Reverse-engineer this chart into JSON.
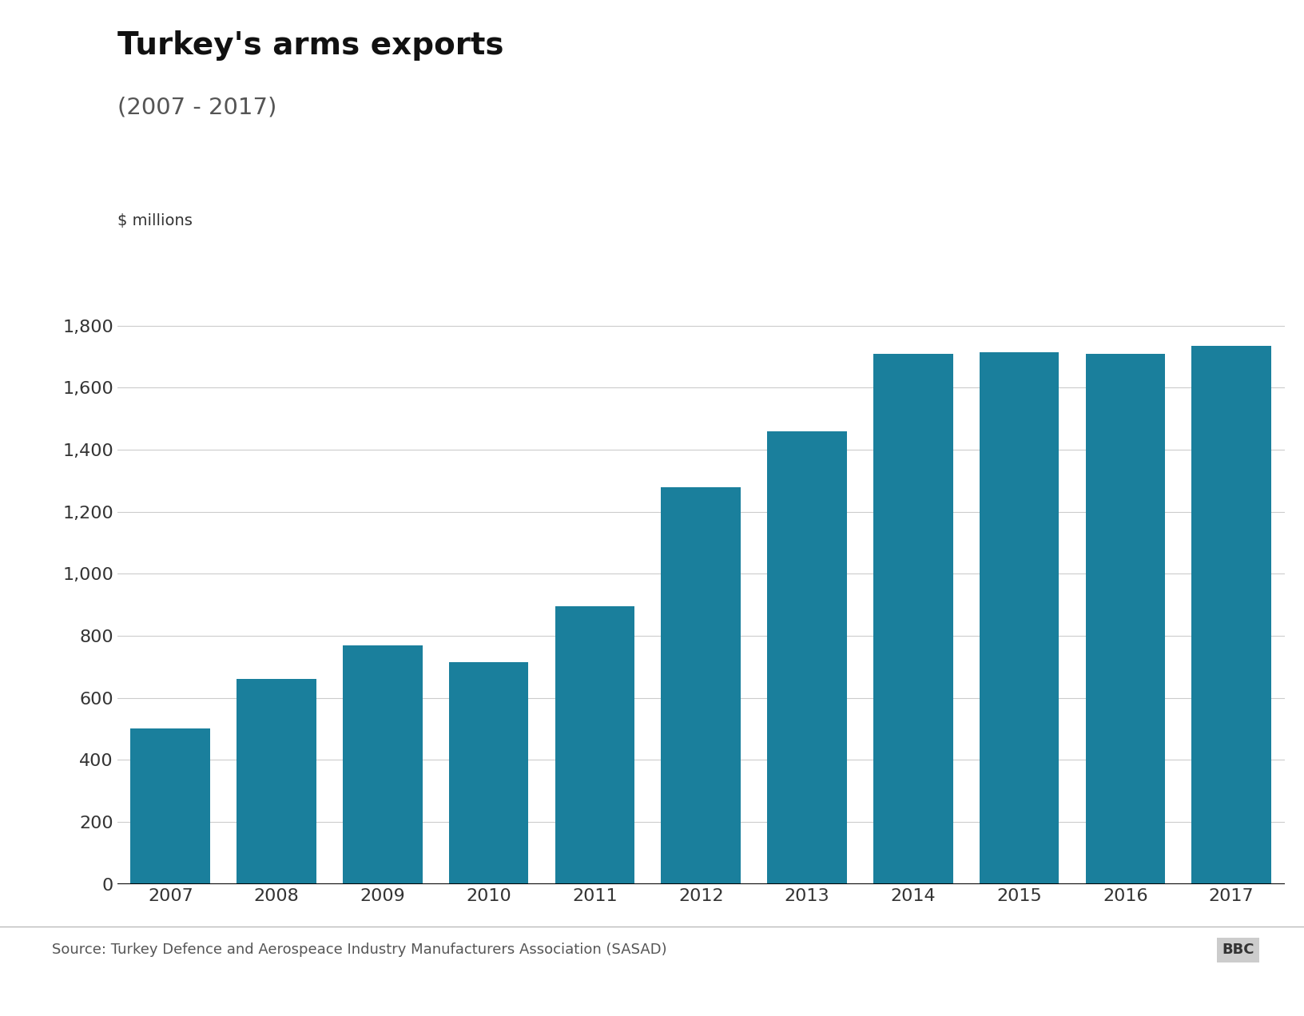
{
  "title": "Turkey's arms exports",
  "subtitle": "(2007 - 2017)",
  "ylabel": "$ millions",
  "source_text": "Source: Turkey Defence and Aerospeace Industry Manufacturers Association (SASAD)",
  "bbc_text": "BBC",
  "years": [
    2007,
    2008,
    2009,
    2010,
    2011,
    2012,
    2013,
    2014,
    2015,
    2016,
    2017
  ],
  "values": [
    500,
    660,
    770,
    715,
    895,
    1280,
    1460,
    1710,
    1715,
    1710,
    1735
  ],
  "bar_color": "#1a7f9c",
  "background_color": "#ffffff",
  "grid_color": "#cccccc",
  "ylim": [
    0,
    1900
  ],
  "yticks": [
    0,
    200,
    400,
    600,
    800,
    1000,
    1200,
    1400,
    1600,
    1800
  ],
  "title_fontsize": 28,
  "subtitle_fontsize": 21,
  "ylabel_fontsize": 14,
  "tick_fontsize": 16,
  "source_fontsize": 13
}
